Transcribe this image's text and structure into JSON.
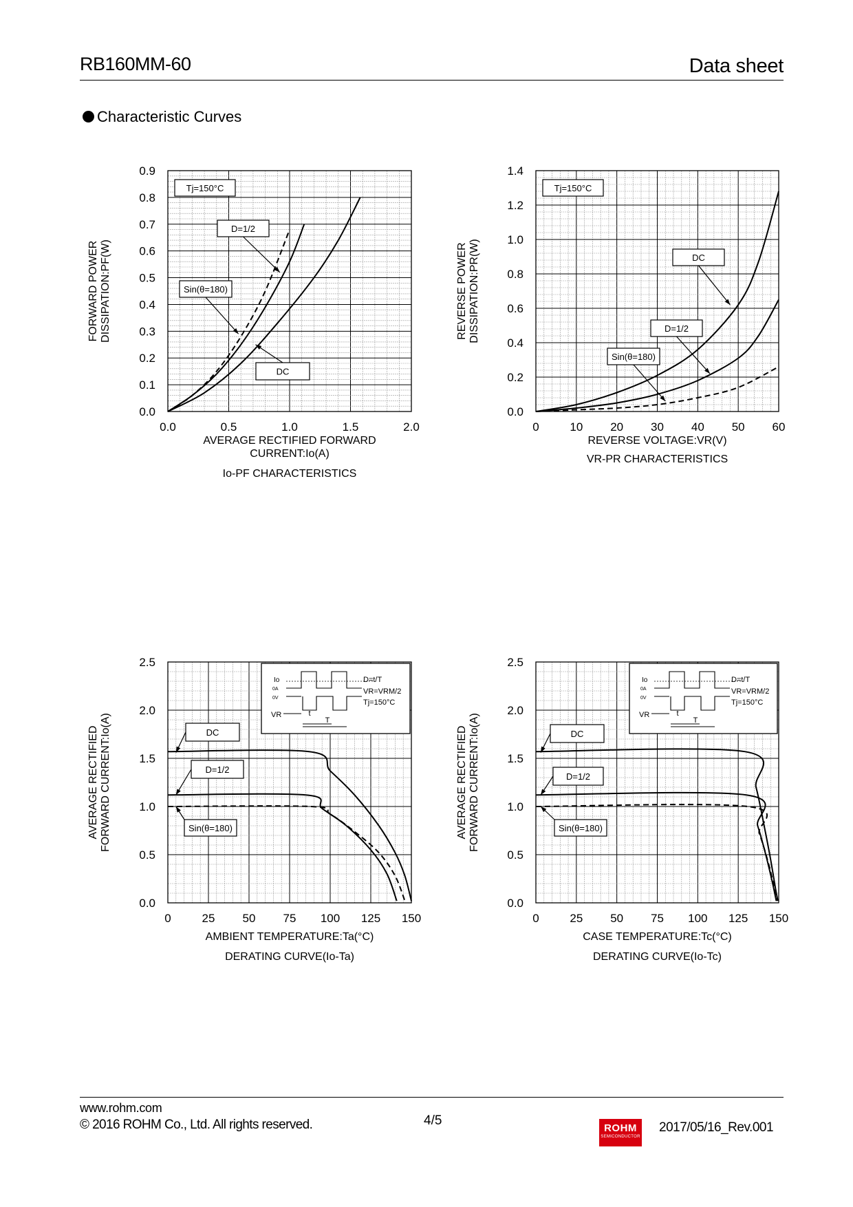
{
  "header": {
    "title": "RB160MM-60",
    "right": "Data sheet"
  },
  "section_title": "Characteristic Curves",
  "footer": {
    "url": "www.rohm.com",
    "copyright": "© 2016 ROHM Co., Ltd. All rights reserved.",
    "page": "4/5",
    "logo_text": "ROHM",
    "logo_sub": "SEMICONDUCTOR",
    "revision": "2017/05/16_Rev.001"
  },
  "chart_data": [
    {
      "type": "line",
      "title": "Io-PF CHARACTERISTICS",
      "xlabel": "AVERAGE RECTIFIED FORWARD CURRENT:Io(A)",
      "ylabel": "FORWARD POWER DISSIPATION:PF(W)",
      "xlim": [
        0,
        2.0
      ],
      "ylim": [
        0,
        0.9
      ],
      "xticks": [
        "0.0",
        "0.5",
        "1.0",
        "1.5",
        "2.0"
      ],
      "yticks": [
        "0.0",
        "0.1",
        "0.2",
        "0.3",
        "0.4",
        "0.5",
        "0.6",
        "0.7",
        "0.8",
        "0.9"
      ],
      "condition": "Tj=150°C",
      "series": [
        {
          "name": "D=1/2",
          "style": "solid",
          "x": [
            0,
            0.2,
            0.4,
            0.6,
            0.8,
            1.0,
            1.12
          ],
          "y": [
            0,
            0.06,
            0.14,
            0.25,
            0.39,
            0.56,
            0.7
          ]
        },
        {
          "name": "Sin(θ=180)",
          "style": "dashed",
          "x": [
            0,
            0.2,
            0.4,
            0.6,
            0.8,
            1.0
          ],
          "y": [
            0,
            0.06,
            0.15,
            0.28,
            0.45,
            0.68
          ]
        },
        {
          "name": "DC",
          "style": "solid",
          "x": [
            0,
            0.3,
            0.6,
            0.9,
            1.2,
            1.4,
            1.58
          ],
          "y": [
            0,
            0.07,
            0.18,
            0.33,
            0.5,
            0.64,
            0.8
          ]
        }
      ]
    },
    {
      "type": "line",
      "title": "VR-PR CHARACTERISTICS",
      "xlabel": "REVERSE VOLTAGE:VR(V)",
      "ylabel": "REVERSE POWER DISSIPATION:PR(W)",
      "xlim": [
        0,
        60
      ],
      "ylim": [
        0,
        1.4
      ],
      "xticks": [
        "0",
        "10",
        "20",
        "30",
        "40",
        "50",
        "60"
      ],
      "yticks": [
        "0.0",
        "0.2",
        "0.4",
        "0.6",
        "0.8",
        "1.0",
        "1.2",
        "1.4"
      ],
      "condition": "Tj=150°C",
      "series": [
        {
          "name": "DC",
          "style": "solid",
          "x": [
            0,
            10,
            20,
            30,
            40,
            50,
            55,
            60
          ],
          "y": [
            0,
            0.04,
            0.11,
            0.21,
            0.36,
            0.62,
            0.87,
            1.28
          ]
        },
        {
          "name": "D=1/2",
          "style": "solid",
          "x": [
            0,
            10,
            20,
            30,
            40,
            50,
            55,
            60
          ],
          "y": [
            0,
            0.02,
            0.05,
            0.1,
            0.18,
            0.31,
            0.44,
            0.65
          ]
        },
        {
          "name": "Sin(θ=180)",
          "style": "dashed",
          "x": [
            0,
            10,
            20,
            30,
            40,
            50,
            60
          ],
          "y": [
            0,
            0.01,
            0.02,
            0.04,
            0.08,
            0.14,
            0.26
          ]
        }
      ]
    },
    {
      "type": "line",
      "title": "DERATING CURVE(Io-Ta)",
      "xlabel": "AMBIENT TEMPERATURE:Ta(°C)",
      "ylabel": "AVERAGE RECTIFIED FORWARD CURRENT:Io(A)",
      "xlim": [
        0,
        150
      ],
      "ylim": [
        0,
        2.5
      ],
      "xticks": [
        "0",
        "25",
        "50",
        "75",
        "100",
        "125",
        "150"
      ],
      "yticks": [
        "0.0",
        "0.5",
        "1.0",
        "1.5",
        "2.0",
        "2.5"
      ],
      "legend_box": [
        "Io",
        "0A",
        "0V",
        "VR",
        "t",
        "T",
        "D=t/T",
        "VR=VRM/2",
        "Tj=150°C"
      ],
      "series": [
        {
          "name": "DC",
          "style": "solid",
          "x": [
            0,
            87,
            100,
            115,
            130,
            140,
            146,
            150
          ],
          "y": [
            1.57,
            1.57,
            1.37,
            1.12,
            0.8,
            0.52,
            0.28,
            0.02
          ]
        },
        {
          "name": "D=1/2",
          "style": "solid",
          "x": [
            0,
            85,
            95,
            110,
            125,
            135,
            141
          ],
          "y": [
            1.12,
            1.12,
            0.98,
            0.8,
            0.55,
            0.3,
            0.02
          ]
        },
        {
          "name": "Sin(θ=180)",
          "style": "dashed",
          "x": [
            0,
            88,
            100,
            115,
            130,
            140,
            146
          ],
          "y": [
            1.0,
            1.0,
            0.92,
            0.74,
            0.52,
            0.28,
            0.02
          ]
        }
      ]
    },
    {
      "type": "line",
      "title": "DERATING CURVE(Io-Tc)",
      "xlabel": "CASE TEMPERATURE:Tc(°C)",
      "ylabel": "AVERAGE RECTIFIED FORWARD CURRENT:Io(A)",
      "xlim": [
        0,
        150
      ],
      "ylim": [
        0,
        2.5
      ],
      "xticks": [
        "0",
        "25",
        "50",
        "75",
        "100",
        "125",
        "150"
      ],
      "yticks": [
        "0.0",
        "0.5",
        "1.0",
        "1.5",
        "2.0",
        "2.5"
      ],
      "legend_box": [
        "Io",
        "0A",
        "0V",
        "VR",
        "t",
        "T",
        "D=t/T",
        "VR=VRM/2",
        "Tj=150°C"
      ],
      "series": [
        {
          "name": "DC",
          "style": "solid",
          "x": [
            0,
            129,
            136,
            141,
            145,
            148,
            149.5
          ],
          "y": [
            1.57,
            1.57,
            1.2,
            0.8,
            0.45,
            0.15,
            0.02
          ]
        },
        {
          "name": "D=1/2",
          "style": "solid",
          "x": [
            0,
            130,
            137,
            142,
            146,
            148.5
          ],
          "y": [
            1.12,
            1.12,
            0.8,
            0.5,
            0.22,
            0.02
          ]
        },
        {
          "name": "Sin(θ=180)",
          "style": "dashed",
          "x": [
            0,
            131,
            138,
            143,
            147,
            149
          ],
          "y": [
            1.0,
            1.0,
            0.72,
            0.45,
            0.18,
            0.02
          ]
        }
      ]
    }
  ]
}
